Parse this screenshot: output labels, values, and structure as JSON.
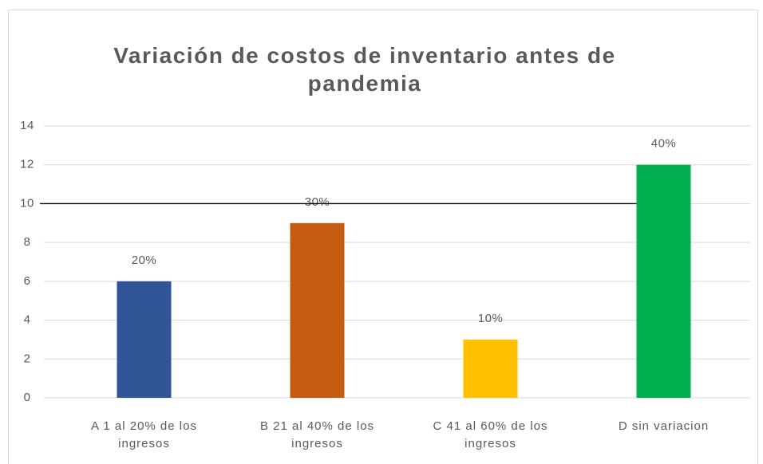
{
  "chart_data": {
    "type": "bar",
    "title": "Variación de costos de inventario antes de pandemia",
    "categories": [
      "A 1 al 20% de los ingresos",
      "B 21 al 40% de los ingresos",
      "C 41 al 60% de los ingresos",
      "D sin variacion"
    ],
    "values": [
      6,
      9,
      3,
      12
    ],
    "value_labels": [
      "20%",
      "30%",
      "10%",
      "40%"
    ],
    "colors": [
      "#2f5597",
      "#c55a11",
      "#ffc000",
      "#00b050"
    ],
    "ylim": [
      0,
      14
    ],
    "yticks": [
      0,
      2,
      4,
      6,
      8,
      10,
      12,
      14
    ],
    "grid": true,
    "hline": 10
  }
}
